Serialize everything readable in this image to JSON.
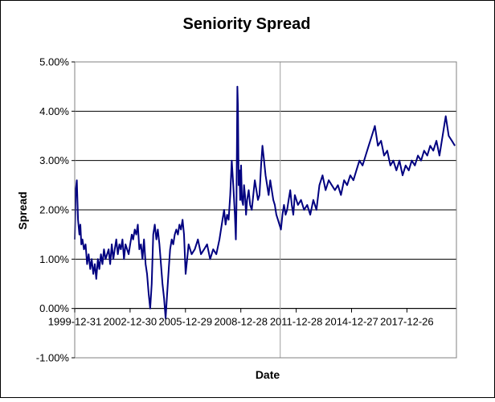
{
  "chart_data": {
    "type": "line",
    "title": "Seniority Spread",
    "xlabel": "Date",
    "ylabel": "Spread",
    "ylim": [
      -0.01,
      0.05
    ],
    "xlim": [
      "1999-12-31",
      "2020-08-31"
    ],
    "y_ticks": [
      -0.01,
      0,
      0.01,
      0.02,
      0.03,
      0.04,
      0.05
    ],
    "y_tick_labels": [
      "-1.00%",
      "0.00%",
      "1.00%",
      "2.00%",
      "3.00%",
      "4.00%",
      "5.00%"
    ],
    "x_tick_labels": [
      "1999-12-31",
      "2002-12-30",
      "2005-12-29",
      "2008-12-28",
      "2011-12-28",
      "2014-12-27",
      "2017-12-26"
    ],
    "x_ticks": [
      "1999-12-31",
      "2002-12-30",
      "2005-12-29",
      "2008-12-28",
      "2011-12-28",
      "2014-12-27",
      "2017-12-26"
    ],
    "vertical_marker": "2011-02-15",
    "grid": "horizontal",
    "legend": "none",
    "series": [
      {
        "color": "#000080",
        "x": [
          "1999-12-31",
          "2000-01-20",
          "2000-02-10",
          "2000-03-05",
          "2000-04-01",
          "2000-04-20",
          "2000-05-10",
          "2000-06-01",
          "2000-07-01",
          "2000-08-01",
          "2000-09-01",
          "2000-10-01",
          "2000-11-01",
          "2000-12-01",
          "2001-01-01",
          "2001-02-01",
          "2001-03-01",
          "2001-04-01",
          "2001-05-01",
          "2001-06-01",
          "2001-07-01",
          "2001-08-01",
          "2001-09-01",
          "2001-10-01",
          "2001-11-01",
          "2001-12-01",
          "2002-01-01",
          "2002-02-01",
          "2002-03-01",
          "2002-04-01",
          "2002-05-01",
          "2002-06-01",
          "2002-07-01",
          "2002-08-01",
          "2002-09-01",
          "2002-10-01",
          "2002-11-01",
          "2002-12-01",
          "2003-01-01",
          "2003-02-01",
          "2003-03-01",
          "2003-04-01",
          "2003-05-01",
          "2003-06-01",
          "2003-07-01",
          "2003-08-01",
          "2003-09-01",
          "2003-10-01",
          "2003-11-01",
          "2003-12-01",
          "2004-01-01",
          "2004-02-01",
          "2004-03-01",
          "2004-04-01",
          "2004-05-01",
          "2004-06-01",
          "2004-07-01",
          "2004-08-01",
          "2004-09-01",
          "2004-10-01",
          "2004-11-01",
          "2004-12-01",
          "2005-01-01",
          "2005-02-01",
          "2005-03-01",
          "2005-04-01",
          "2005-05-01",
          "2005-06-01",
          "2005-07-01",
          "2005-08-01",
          "2005-09-01",
          "2005-10-01",
          "2005-11-01",
          "2005-12-01",
          "2006-01-01",
          "2006-02-01",
          "2006-03-01",
          "2006-05-01",
          "2006-07-01",
          "2006-09-01",
          "2006-11-01",
          "2007-01-01",
          "2007-03-01",
          "2007-05-01",
          "2007-07-01",
          "2007-09-01",
          "2007-11-01",
          "2008-01-01",
          "2008-02-01",
          "2008-03-01",
          "2008-04-01",
          "2008-05-01",
          "2008-06-01",
          "2008-07-01",
          "2008-08-01",
          "2008-09-01",
          "2008-09-20",
          "2008-10-01",
          "2008-10-10",
          "2008-10-20",
          "2008-11-01",
          "2008-11-15",
          "2008-12-01",
          "2008-12-15",
          "2009-01-01",
          "2009-01-20",
          "2009-02-10",
          "2009-03-01",
          "2009-03-20",
          "2009-04-10",
          "2009-05-01",
          "2009-06-01",
          "2009-07-01",
          "2009-08-01",
          "2009-09-01",
          "2009-10-01",
          "2009-11-01",
          "2009-12-01",
          "2010-01-01",
          "2010-02-01",
          "2010-03-01",
          "2010-04-01",
          "2010-05-01",
          "2010-06-01",
          "2010-07-01",
          "2010-08-01",
          "2010-09-01",
          "2010-10-01",
          "2010-11-01",
          "2010-12-01",
          "2011-01-01",
          "2011-02-01",
          "2011-03-01",
          "2011-04-01",
          "2011-05-01",
          "2011-06-01",
          "2011-07-01",
          "2011-08-01",
          "2011-09-01",
          "2011-10-01",
          "2011-11-01",
          "2011-12-01",
          "2012-02-01",
          "2012-04-01",
          "2012-06-01",
          "2012-08-01",
          "2012-10-01",
          "2012-12-01",
          "2013-02-01",
          "2013-04-01",
          "2013-06-01",
          "2013-08-01",
          "2013-10-01",
          "2013-12-01",
          "2014-02-01",
          "2014-04-01",
          "2014-06-01",
          "2014-08-01",
          "2014-10-01",
          "2014-12-01",
          "2015-02-01",
          "2015-04-01",
          "2015-06-01",
          "2015-08-01",
          "2015-10-01",
          "2015-12-01",
          "2016-02-01",
          "2016-04-01",
          "2016-06-01",
          "2016-08-01",
          "2016-10-01",
          "2016-12-01",
          "2017-02-01",
          "2017-04-01",
          "2017-06-01",
          "2017-08-01",
          "2017-10-01",
          "2017-12-01",
          "2018-02-01",
          "2018-04-01",
          "2018-06-01",
          "2018-08-01",
          "2018-10-01",
          "2018-12-01",
          "2019-02-01",
          "2019-04-01",
          "2019-06-01",
          "2019-08-01",
          "2019-10-01",
          "2019-12-01",
          "2020-02-01",
          "2020-04-01",
          "2020-06-01",
          "2020-08-01"
        ],
        "y": [
          0.014,
          0.024,
          0.026,
          0.018,
          0.015,
          0.017,
          0.013,
          0.014,
          0.012,
          0.013,
          0.009,
          0.011,
          0.008,
          0.01,
          0.007,
          0.009,
          0.006,
          0.01,
          0.008,
          0.011,
          0.009,
          0.012,
          0.01,
          0.011,
          0.012,
          0.009,
          0.013,
          0.01,
          0.012,
          0.014,
          0.011,
          0.013,
          0.012,
          0.014,
          0.01,
          0.013,
          0.012,
          0.011,
          0.013,
          0.015,
          0.014,
          0.016,
          0.015,
          0.017,
          0.012,
          0.013,
          0.01,
          0.014,
          0.009,
          0.007,
          0.003,
          0.0,
          0.005,
          0.015,
          0.017,
          0.014,
          0.016,
          0.013,
          0.009,
          0.005,
          0.002,
          -0.002,
          0.003,
          0.008,
          0.012,
          0.014,
          0.013,
          0.015,
          0.016,
          0.015,
          0.017,
          0.016,
          0.018,
          0.015,
          0.007,
          0.01,
          0.013,
          0.011,
          0.012,
          0.014,
          0.011,
          0.012,
          0.013,
          0.01,
          0.012,
          0.011,
          0.014,
          0.018,
          0.02,
          0.017,
          0.019,
          0.018,
          0.023,
          0.03,
          0.025,
          0.019,
          0.014,
          0.02,
          0.03,
          0.045,
          0.041,
          0.025,
          0.028,
          0.022,
          0.029,
          0.022,
          0.021,
          0.025,
          0.023,
          0.019,
          0.022,
          0.024,
          0.021,
          0.02,
          0.023,
          0.026,
          0.024,
          0.022,
          0.023,
          0.029,
          0.033,
          0.03,
          0.027,
          0.025,
          0.023,
          0.026,
          0.024,
          0.022,
          0.021,
          0.019,
          0.018,
          0.017,
          0.016,
          0.019,
          0.021,
          0.019,
          0.02,
          0.022,
          0.024,
          0.021,
          0.019,
          0.023,
          0.021,
          0.022,
          0.02,
          0.021,
          0.019,
          0.022,
          0.02,
          0.025,
          0.027,
          0.024,
          0.026,
          0.025,
          0.024,
          0.025,
          0.023,
          0.026,
          0.025,
          0.027,
          0.026,
          0.028,
          0.03,
          0.029,
          0.031,
          0.033,
          0.035,
          0.037,
          0.033,
          0.034,
          0.031,
          0.032,
          0.029,
          0.03,
          0.028,
          0.03,
          0.027,
          0.029,
          0.028,
          0.03,
          0.029,
          0.031,
          0.03,
          0.032,
          0.031,
          0.033,
          0.032,
          0.034,
          0.031,
          0.035,
          0.039,
          0.035,
          0.034,
          0.033
        ]
      }
    ]
  }
}
